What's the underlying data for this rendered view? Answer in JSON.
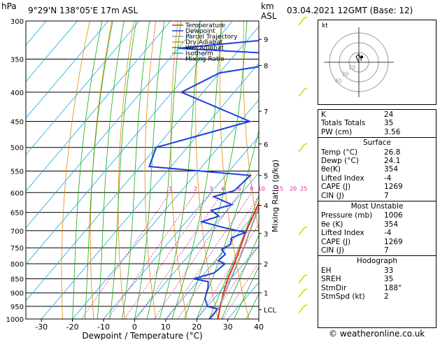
{
  "header": {
    "pressure_unit": "hPa",
    "location": "9°29'N 138°05'E 17m ASL",
    "height_unit": "km",
    "height_unit_sub": "ASL",
    "datetime": "03.04.2021 12GMT (Base: 12)"
  },
  "chart_data": {
    "type": "skew-t",
    "xlabel": "Dewpoint / Temperature (°C)",
    "x_ticks": [
      "-30",
      "-20",
      "-10",
      "0",
      "10",
      "20",
      "30",
      "40"
    ],
    "x_tick_values": [
      -30,
      -20,
      -10,
      0,
      10,
      20,
      30,
      40
    ],
    "xlim": [
      -35,
      40
    ],
    "pressure_ticks": [
      "300",
      "350",
      "400",
      "450",
      "500",
      "550",
      "600",
      "650",
      "700",
      "750",
      "800",
      "850",
      "900",
      "950",
      "1000"
    ],
    "pressure_values": [
      300,
      350,
      400,
      450,
      500,
      550,
      600,
      650,
      700,
      750,
      800,
      850,
      900,
      950,
      1000
    ],
    "ylim_pressure": [
      1000,
      300
    ],
    "height_axis_label": "km",
    "height_ticks": [
      {
        "label": "9",
        "p": 323
      },
      {
        "label": "8",
        "p": 359
      },
      {
        "label": "7",
        "p": 432
      },
      {
        "label": "6",
        "p": 493
      },
      {
        "label": "5",
        "p": 560
      },
      {
        "label": "4",
        "p": 632
      },
      {
        "label": "3",
        "p": 708
      },
      {
        "label": "2",
        "p": 800
      },
      {
        "label": "1",
        "p": 900
      },
      {
        "label": "LCL",
        "p": 963
      }
    ],
    "mixing_ratio_axis_label": "Mixing Ratio (g/kg)",
    "mixing_ratio_labels": [
      "1",
      "2",
      "3",
      "4",
      "6",
      "8",
      "10",
      "15",
      "20",
      "25"
    ],
    "mixing_ratio_values": [
      1,
      2,
      3,
      4,
      6,
      8,
      10,
      15,
      20,
      25
    ],
    "legend": [
      "Temperature",
      "Dewpoint",
      "Parcel Trajectory",
      "Dry Adiabat",
      "Wet Adiabat",
      "Isotherm",
      "Mixing Ratio"
    ],
    "legend_placement": "top-right",
    "series": [
      {
        "name": "Temperature",
        "points": [
          [
            1000,
            26.8
          ],
          [
            950,
            24.1
          ],
          [
            900,
            21.5
          ],
          [
            850,
            19.0
          ],
          [
            800,
            17.0
          ],
          [
            750,
            14.5
          ],
          [
            700,
            11.8
          ],
          [
            650,
            9.5
          ],
          [
            600,
            6.8
          ],
          [
            550,
            3.2
          ],
          [
            500,
            -1.0
          ],
          [
            450,
            -5.5
          ],
          [
            400,
            -10.5
          ],
          [
            375,
            -13.5
          ],
          [
            360,
            -15.5
          ]
        ]
      },
      {
        "name": "Dewpoint",
        "points": [
          [
            1000,
            24.1
          ],
          [
            960,
            24.0
          ],
          [
            950,
            20.0
          ],
          [
            920,
            17.0
          ],
          [
            880,
            15.0
          ],
          [
            860,
            13.5
          ],
          [
            850,
            8.0
          ],
          [
            830,
            13.0
          ],
          [
            800,
            14.0
          ],
          [
            790,
            11.0
          ],
          [
            770,
            11.5
          ],
          [
            755,
            9.0
          ],
          [
            740,
            10.5
          ],
          [
            720,
            9.0
          ],
          [
            705,
            12.0
          ],
          [
            690,
            3.0
          ],
          [
            675,
            -5.0
          ],
          [
            660,
            -1.0
          ],
          [
            645,
            -5.0
          ],
          [
            630,
            0.0
          ],
          [
            610,
            -8.0
          ],
          [
            595,
            -3.0
          ],
          [
            560,
            -2.0
          ],
          [
            540,
            -37.0
          ],
          [
            500,
            -40.0
          ],
          [
            450,
            -17.0
          ],
          [
            400,
            -47.0
          ],
          [
            370,
            -40.0
          ],
          [
            355,
            -22.0
          ],
          [
            345,
            -15.0
          ],
          [
            335,
            -60.0
          ],
          [
            320,
            -25.0
          ],
          [
            305,
            -22.0
          ],
          [
            300,
            -23.0
          ]
        ]
      },
      {
        "name": "Parcel Trajectory",
        "points": [
          [
            963,
            24.2
          ],
          [
            900,
            22.0
          ],
          [
            850,
            20.0
          ],
          [
            800,
            18.0
          ],
          [
            750,
            15.7
          ],
          [
            700,
            13.0
          ],
          [
            650,
            10.2
          ],
          [
            600,
            7.0
          ],
          [
            550,
            3.5
          ],
          [
            500,
            -0.5
          ],
          [
            450,
            -5.0
          ],
          [
            400,
            -10.0
          ],
          [
            360,
            -14.5
          ]
        ]
      }
    ]
  },
  "hodograph": {
    "label": "kt",
    "ring_labels": [
      "40",
      "30",
      "20"
    ]
  },
  "indices": {
    "rows": [
      {
        "k": "K",
        "v": "24"
      },
      {
        "k": "Totals Totals",
        "v": "35"
      },
      {
        "k": "PW (cm)",
        "v": "3.56"
      }
    ],
    "surface": {
      "title": "Surface",
      "rows": [
        {
          "k": "Temp (°C)",
          "v": "26.8"
        },
        {
          "k": "Dewp (°C)",
          "v": "24.1"
        },
        {
          "k": "θe(K)",
          "v": "354"
        },
        {
          "k": "Lifted Index",
          "v": "-4"
        },
        {
          "k": "CAPE (J)",
          "v": "1269"
        },
        {
          "k": "CIN (J)",
          "v": "7"
        }
      ]
    },
    "most_unstable": {
      "title": "Most Unstable",
      "rows": [
        {
          "k": "Pressure (mb)",
          "v": "1006"
        },
        {
          "k": "θe (K)",
          "v": "354"
        },
        {
          "k": "Lifted Index",
          "v": "-4"
        },
        {
          "k": "CAPE (J)",
          "v": "1269"
        },
        {
          "k": "CIN (J)",
          "v": "7"
        }
      ]
    },
    "hodograph": {
      "title": "Hodograph",
      "rows": [
        {
          "k": "EH",
          "v": "33"
        },
        {
          "k": "SREH",
          "v": "35"
        },
        {
          "k": "StmDir",
          "v": "188°"
        },
        {
          "k": "StmSpd (kt)",
          "v": "2"
        }
      ]
    }
  },
  "credit": "© weatheronline.co.uk",
  "colors": {
    "temperature": "#e8261c",
    "dewpoint": "#1c3fe0",
    "parcel": "#9a9a9a",
    "dry_adiabat": "#e08a00",
    "wet_adiabat": "#17a817",
    "isotherm": "#16a8e0",
    "mixing_ratio": "#d8209a",
    "wind": "#d9d400",
    "hodo_ring": "#9a9a9a"
  }
}
